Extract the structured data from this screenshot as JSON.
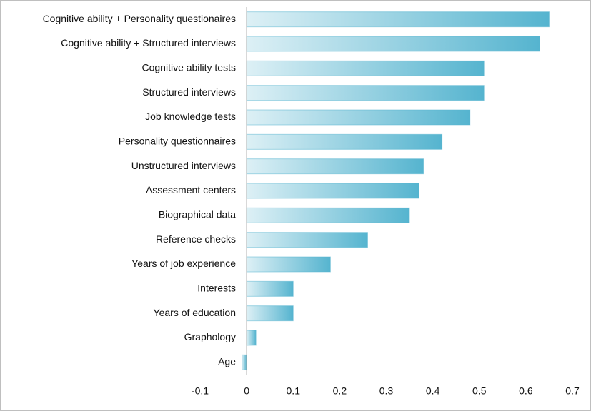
{
  "chart_data": {
    "type": "barh",
    "categories": [
      "Cognitive ability + Personality questionaires",
      "Cognitive ability + Structured interviews",
      "Cognitive ability tests",
      "Structured interviews",
      "Job knowledge tests",
      "Personality questionnaires",
      "Unstructured interviews",
      "Assessment centers",
      "Biographical data",
      "Reference checks",
      "Years of job experience",
      "Interests",
      "Years of education",
      "Graphology",
      "Age"
    ],
    "values": [
      0.65,
      0.63,
      0.51,
      0.51,
      0.48,
      0.42,
      0.38,
      0.37,
      0.35,
      0.26,
      0.18,
      0.1,
      0.1,
      0.02,
      -0.01
    ],
    "color": "#55b4cf",
    "xlim": [
      -0.1,
      0.7
    ],
    "xticks": [
      -0.1,
      0,
      0.1,
      0.2,
      0.3,
      0.4,
      0.5,
      0.6,
      0.7
    ],
    "grid": false
  }
}
